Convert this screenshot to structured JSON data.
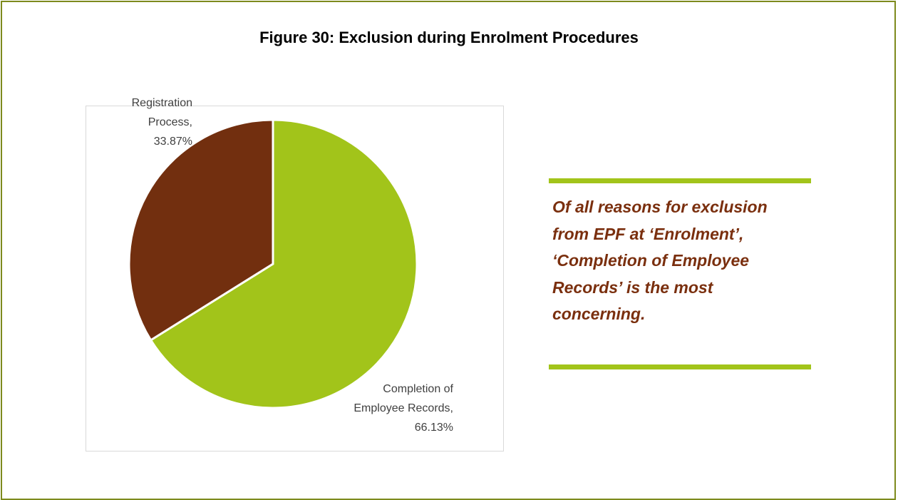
{
  "chart_data": {
    "type": "pie",
    "title": "Figure 30: Exclusion during Enrolment Procedures",
    "labels": [
      "Completion of Employee Records, 66.13%",
      "Registration Process, 33.87%"
    ],
    "values": [
      66.13,
      33.87
    ],
    "colors": [
      "#a2c41a",
      "#722f0f"
    ]
  },
  "callout": "Of all reasons for exclusion from EPF at ‘Enrolment’, ‘Completion of Employee Records’ is the most concerning."
}
